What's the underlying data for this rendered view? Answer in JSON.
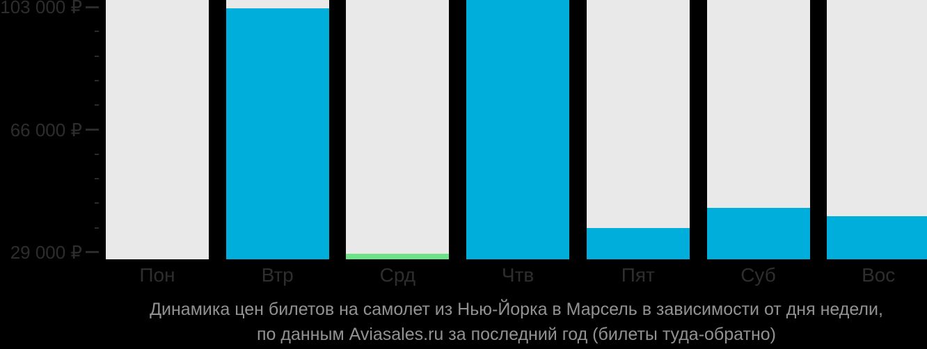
{
  "chart_data": {
    "type": "bar",
    "title": "Динамика цен билетов на самолет из Нью-Йорка в Марсель в зависимости от дня недели,",
    "subtitle": "по данным Aviasales.ru за последний год (билеты туда-обратно)",
    "categories": [
      "Пон",
      "Втр",
      "Срд",
      "Чтв",
      "Пят",
      "Суб",
      "Вос"
    ],
    "values": [
      null,
      102600,
      28500,
      105100,
      36300,
      42400,
      39900
    ],
    "bar_colors": [
      "none",
      "blue",
      "green",
      "blue",
      "blue",
      "blue",
      "blue"
    ],
    "no_data_days": [
      "Пон"
    ],
    "cheapest_day": "Срд",
    "currency": "₽",
    "ylim": [
      26900,
      105100
    ],
    "y_ticks_major": [
      {
        "label": "103 000 ₽",
        "value": 103000
      },
      {
        "label": "66 000 ₽",
        "value": 66000
      },
      {
        "label": "29 000 ₽",
        "value": 29000
      }
    ],
    "y_ticks_minor": [
      95600,
      88200,
      80800,
      73400,
      58600,
      51200,
      43800,
      36400
    ],
    "xlabel": "",
    "ylabel": "",
    "legend": "none",
    "grid": false
  },
  "colors": {
    "background": "#000000",
    "column_bg": "#E9E9E9",
    "bar_blue": "#00AEDC",
    "bar_green": "#6EE287",
    "axis_text": "#2D2D2D",
    "caption_text": "#929292",
    "tick": "#2B2B2B"
  }
}
